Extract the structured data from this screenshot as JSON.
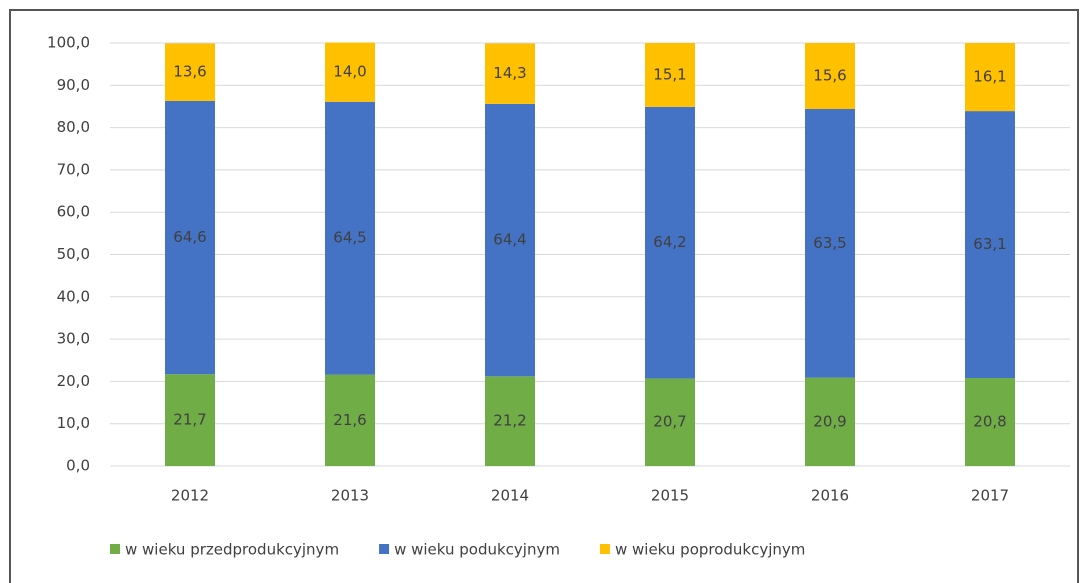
{
  "chart_data": {
    "type": "stacked_bar",
    "categories": [
      "2012",
      "2013",
      "2014",
      "2015",
      "2016",
      "2017"
    ],
    "series": [
      {
        "name": "w wieku przedprodukcyjnym",
        "color": "#70ad47",
        "values": [
          21.7,
          21.6,
          21.2,
          20.7,
          20.9,
          20.8
        ],
        "value_labels": [
          "21,7",
          "21,6",
          "21,2",
          "20,7",
          "20,9",
          "20,8"
        ]
      },
      {
        "name": "w wieku podukcyjnym",
        "color": "#4472c4",
        "values": [
          64.6,
          64.5,
          64.4,
          64.2,
          63.5,
          63.1
        ],
        "value_labels": [
          "64,6",
          "64,5",
          "64,4",
          "64,2",
          "63,5",
          "63,1"
        ]
      },
      {
        "name": "w wieku poprodukcyjnym",
        "color": "#ffc000",
        "values": [
          13.6,
          14.0,
          14.3,
          15.1,
          15.6,
          16.1
        ],
        "value_labels": [
          "13,6",
          "14,0",
          "14,3",
          "15,1",
          "15,6",
          "16,1"
        ]
      }
    ],
    "ylim": [
      0,
      100
    ],
    "yticks": [
      {
        "value": 0,
        "label": "0,0"
      },
      {
        "value": 10,
        "label": "10,0"
      },
      {
        "value": 20,
        "label": "20,0"
      },
      {
        "value": 30,
        "label": "30,0"
      },
      {
        "value": 40,
        "label": "40,0"
      },
      {
        "value": 50,
        "label": "50,0"
      },
      {
        "value": 60,
        "label": "60,0"
      },
      {
        "value": 70,
        "label": "70,0"
      },
      {
        "value": 80,
        "label": "80,0"
      },
      {
        "value": 90,
        "label": "90,0"
      },
      {
        "value": 100,
        "label": "100,0"
      }
    ],
    "grid": true,
    "legend": "bottom"
  }
}
